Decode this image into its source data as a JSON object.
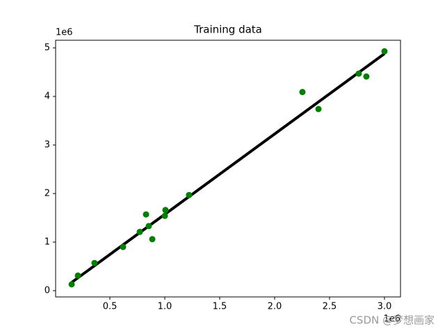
{
  "chart_data": {
    "type": "scatter",
    "title": "Training data",
    "x_offset_label": "1e6",
    "y_offset_label": "1e6",
    "points": {
      "color": "#008000",
      "x": [
        0.152,
        0.209,
        0.36,
        0.62,
        0.772,
        0.829,
        0.854,
        0.886,
        1.0,
        1.006,
        1.221,
        2.253,
        2.399,
        2.766,
        2.835,
        3.0
      ],
      "y": [
        0.13,
        0.31,
        0.57,
        0.9,
        1.21,
        1.57,
        1.33,
        1.06,
        1.54,
        1.66,
        1.97,
        4.09,
        3.74,
        4.47,
        4.41,
        4.93
      ]
    },
    "fit_line": {
      "color": "#000000",
      "x": [
        0.152,
        3.0
      ],
      "y": [
        0.17,
        4.88
      ]
    },
    "xlim": [
      0.006,
      3.146
    ],
    "ylim": [
      -0.129,
      5.157
    ],
    "xticks": [
      0.5,
      {
        "value": 1.0,
        "label": "1.0"
      },
      1.5,
      {
        "value": 2.0,
        "label": "2.0"
      },
      2.5,
      {
        "value": 3.0,
        "label": "3.0"
      }
    ],
    "yticks": [
      0,
      1,
      2,
      3,
      4,
      5
    ],
    "watermark": "CSDN @梦想画家"
  }
}
